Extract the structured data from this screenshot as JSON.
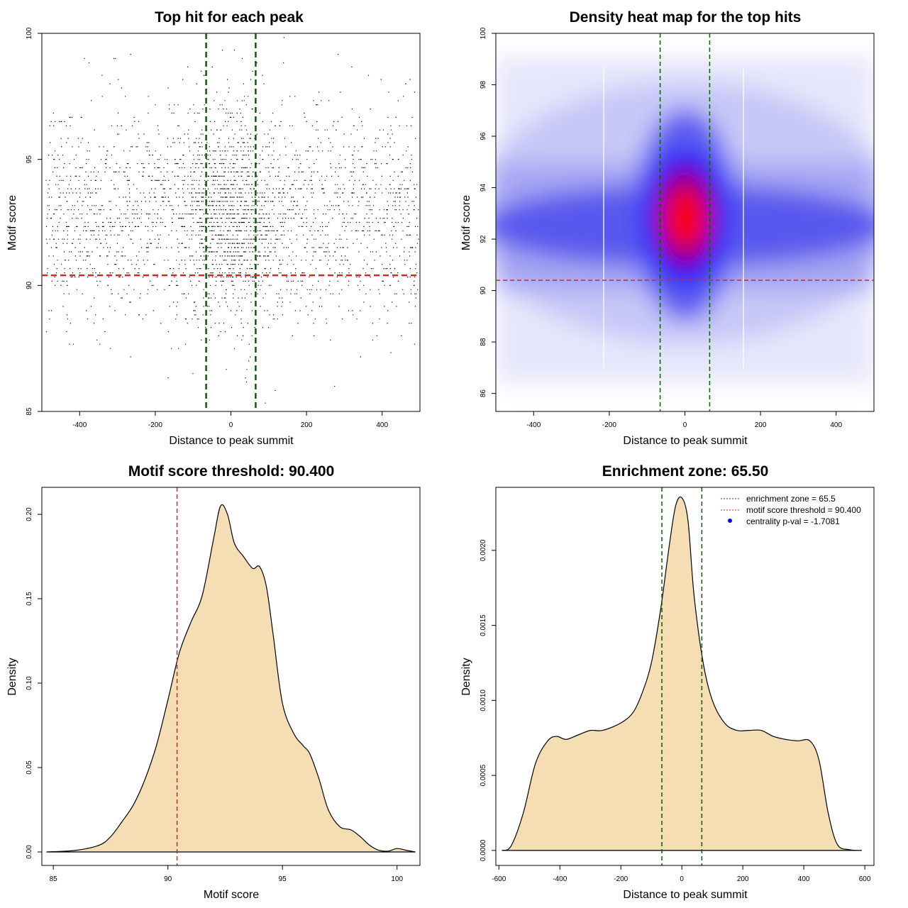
{
  "colors": {
    "enrichment_line": "#006400",
    "threshold_line": "#dd2222",
    "density_fill": "#f5deb3",
    "heat_low": "#ffffff",
    "heat_mid": "#0000ff",
    "heat_high": "#ff0000",
    "points": "#000000"
  },
  "chart_data": [
    {
      "type": "scatter",
      "title": "Top hit for each peak",
      "xlabel": "Distance to peak summit",
      "ylabel": "Motif score",
      "xlim": [
        -500,
        500
      ],
      "ylim": [
        85,
        100
      ],
      "xticks": [
        -400,
        -200,
        0,
        200,
        400
      ],
      "yticks": [
        85,
        90,
        95,
        100
      ],
      "vlines": [
        -65.5,
        65.5
      ],
      "hline": 90.4,
      "point_distribution": {
        "x_range": [
          -490,
          495
        ],
        "score_mode": 92.7,
        "score_sd": 2.0,
        "central_peak_width": 65
      }
    },
    {
      "type": "heatmap",
      "title": "Density heat map for the top hits",
      "xlabel": "Distance to peak summit",
      "ylabel": "Motif score",
      "xlim": [
        -500,
        500
      ],
      "ylim": [
        85.3,
        100
      ],
      "xticks": [
        -400,
        -200,
        0,
        200,
        400
      ],
      "yticks": [
        86,
        88,
        90,
        92,
        94,
        96,
        98,
        100
      ],
      "vlines": [
        -65.5,
        65.5
      ],
      "hline": 90.4,
      "density_peak": {
        "x": 0,
        "y": 92.8
      }
    },
    {
      "type": "area",
      "title": "Motif score threshold: 90.400",
      "xlabel": "Motif score",
      "ylabel": "Density",
      "xlim": [
        84.5,
        101
      ],
      "ylim": [
        -0.008,
        0.216
      ],
      "xticks": [
        85,
        90,
        95,
        100
      ],
      "yticks": [
        0.0,
        0.05,
        0.1,
        0.15,
        0.2
      ],
      "ytick_labels": [
        "0.00",
        "0.05",
        "0.10",
        "0.15",
        "0.20"
      ],
      "vline": 90.4,
      "x": [
        84.7,
        86,
        87,
        87.5,
        88,
        88.5,
        89,
        89.5,
        90,
        90.5,
        91,
        91.5,
        92,
        92.3,
        92.6,
        92.9,
        93.3,
        93.7,
        94,
        94.3,
        94.6,
        95,
        95.5,
        95.9,
        96.2,
        96.6,
        97,
        97.5,
        98,
        98.4,
        98.8,
        99.2,
        99.6,
        100,
        100.4,
        100.8
      ],
      "y": [
        0,
        0.001,
        0.004,
        0.009,
        0.018,
        0.028,
        0.043,
        0.063,
        0.09,
        0.118,
        0.136,
        0.152,
        0.186,
        0.205,
        0.2,
        0.183,
        0.175,
        0.168,
        0.169,
        0.157,
        0.128,
        0.088,
        0.07,
        0.063,
        0.058,
        0.043,
        0.025,
        0.015,
        0.013,
        0.009,
        0.004,
        0.001,
        0.0005,
        0.002,
        0.001,
        0
      ]
    },
    {
      "type": "area",
      "title": "Enrichment zone: 65.50",
      "xlabel": "Distance to peak summit",
      "ylabel": "Density",
      "xlim": [
        -610,
        630
      ],
      "ylim": [
        -0.0001,
        0.00242
      ],
      "xticks": [
        -600,
        -400,
        -200,
        0,
        200,
        400,
        600
      ],
      "yticks": [
        0.0,
        0.0005,
        0.001,
        0.0015,
        0.002
      ],
      "ytick_labels": [
        "0.0000",
        "0.0005",
        "0.0010",
        "0.0015",
        "0.0020"
      ],
      "vlines": [
        -65.5,
        65.5
      ],
      "x": [
        -590,
        -560,
        -520,
        -480,
        -440,
        -410,
        -380,
        -340,
        -300,
        -260,
        -200,
        -160,
        -130,
        -100,
        -70,
        -40,
        -20,
        0,
        20,
        40,
        70,
        100,
        140,
        180,
        220,
        260,
        300,
        340,
        380,
        420,
        450,
        480,
        510,
        550,
        590
      ],
      "y": [
        0,
        3e-05,
        0.00025,
        0.00058,
        0.00073,
        0.00076,
        0.00074,
        0.00077,
        0.0008,
        0.0008,
        0.00085,
        0.00092,
        0.00105,
        0.00125,
        0.0016,
        0.00205,
        0.0023,
        0.00235,
        0.0022,
        0.0017,
        0.00125,
        0.001,
        0.00085,
        0.0008,
        0.0008,
        0.0008,
        0.00076,
        0.00074,
        0.00073,
        0.00073,
        0.0006,
        0.00025,
        4e-05,
        5e-06,
        0
      ],
      "legend": {
        "placement": "top-right",
        "entries": [
          {
            "label": "enrichment zone = 65.5",
            "style": "dotted-line",
            "color": "#006400"
          },
          {
            "label": "motif score threshold = 90.400",
            "style": "dotted-line",
            "color": "#dd2222"
          },
          {
            "label": "centrality p-val = -1.7081",
            "style": "dot",
            "color": "#0000ff"
          }
        ]
      }
    }
  ]
}
